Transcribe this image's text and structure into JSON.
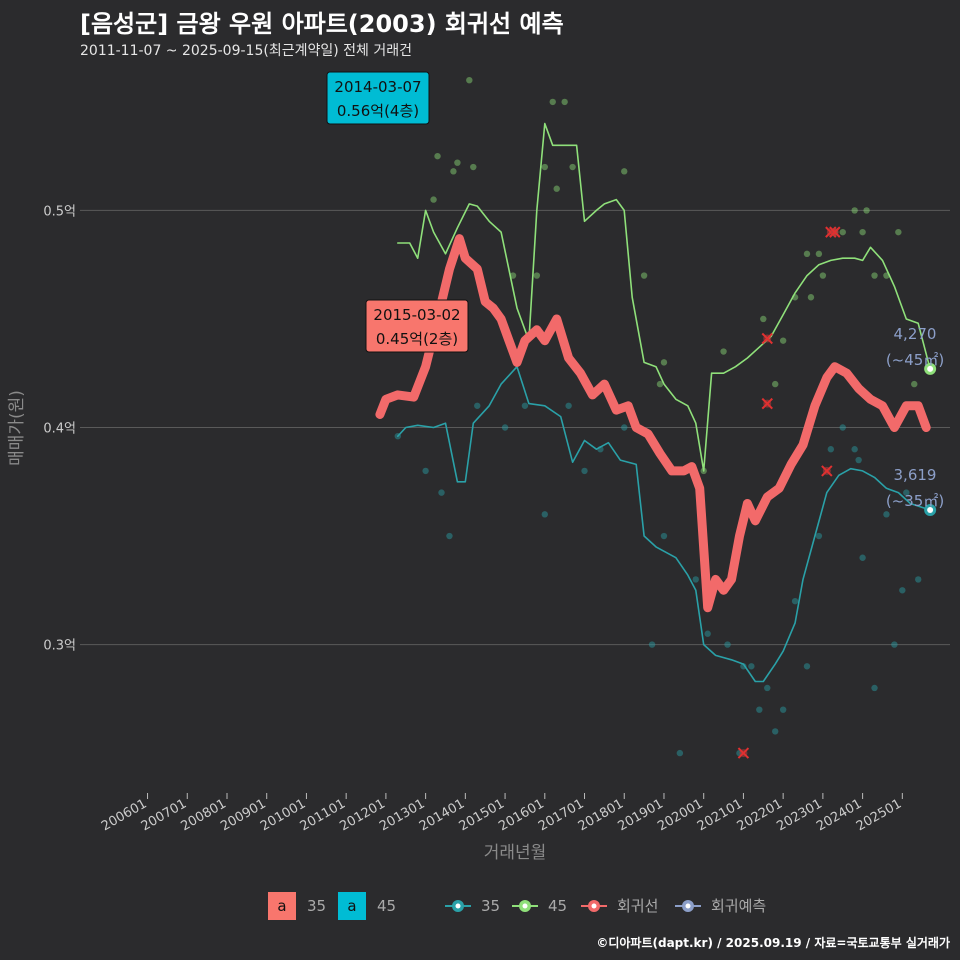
{
  "header": {
    "title": "[음성군] 금왕 우원 아파트(2003) 회귀선 예측",
    "subtitle": "2011-11-07 ~ 2025-09-15(최근계약일) 전체 거래건"
  },
  "footer": {
    "credit": "©디아파트(dapt.kr) / 2025.09.19 / 자료=국토교통부 실거래가"
  },
  "colors": {
    "background": "#2b2b2d",
    "grid": "#5a5a5a",
    "s35": "#2aa1a8",
    "s45": "#8fe07a",
    "regression": "#f26a6a",
    "forecast": "#8c9fc9"
  },
  "chart_data": {
    "type": "line",
    "title": "[음성군] 금왕 우원 아파트(2003) 회귀선 예측",
    "xlabel": "거래년월",
    "ylabel": "매매가(원)",
    "x_ticks": [
      "200601",
      "200701",
      "200801",
      "200901",
      "201001",
      "201101",
      "201201",
      "201301",
      "201401",
      "201501",
      "201601",
      "201701",
      "201801",
      "201901",
      "202001",
      "202101",
      "202201",
      "202301",
      "202401",
      "202501"
    ],
    "y_ticks": [
      {
        "value": 0.3,
        "label": "0.3억"
      },
      {
        "value": 0.4,
        "label": "0.4억"
      },
      {
        "value": 0.5,
        "label": "0.5억"
      }
    ],
    "ylim": [
      0.233,
      0.567
    ],
    "series": [
      {
        "name": "35",
        "points": [
          [
            2012.3,
            0.396
          ],
          [
            2012.5,
            0.4
          ],
          [
            2012.8,
            0.401
          ],
          [
            2013.2,
            0.4
          ],
          [
            2013.5,
            0.402
          ],
          [
            2013.8,
            0.375
          ],
          [
            2014.0,
            0.375
          ],
          [
            2014.2,
            0.402
          ],
          [
            2014.6,
            0.41
          ],
          [
            2014.9,
            0.42
          ],
          [
            2015.3,
            0.428
          ],
          [
            2015.6,
            0.411
          ],
          [
            2016.0,
            0.41
          ],
          [
            2016.4,
            0.405
          ],
          [
            2016.7,
            0.384
          ],
          [
            2017.0,
            0.394
          ],
          [
            2017.3,
            0.39
          ],
          [
            2017.6,
            0.393
          ],
          [
            2017.9,
            0.385
          ],
          [
            2018.3,
            0.383
          ],
          [
            2018.5,
            0.35
          ],
          [
            2018.8,
            0.345
          ],
          [
            2019.3,
            0.34
          ],
          [
            2019.6,
            0.332
          ],
          [
            2019.8,
            0.325
          ],
          [
            2020.0,
            0.3
          ],
          [
            2020.3,
            0.295
          ],
          [
            2020.7,
            0.293
          ],
          [
            2021.0,
            0.291
          ],
          [
            2021.3,
            0.283
          ],
          [
            2021.5,
            0.283
          ],
          [
            2021.8,
            0.291
          ],
          [
            2022.0,
            0.297
          ],
          [
            2022.3,
            0.31
          ],
          [
            2022.5,
            0.33
          ],
          [
            2022.8,
            0.35
          ],
          [
            2023.1,
            0.37
          ],
          [
            2023.4,
            0.378
          ],
          [
            2023.7,
            0.381
          ],
          [
            2024.0,
            0.38
          ],
          [
            2024.3,
            0.377
          ],
          [
            2024.6,
            0.372
          ],
          [
            2024.9,
            0.37
          ],
          [
            2025.2,
            0.365
          ],
          [
            2025.7,
            0.362
          ]
        ]
      },
      {
        "name": "45",
        "points": [
          [
            2012.3,
            0.485
          ],
          [
            2012.6,
            0.485
          ],
          [
            2012.8,
            0.478
          ],
          [
            2013.0,
            0.5
          ],
          [
            2013.2,
            0.49
          ],
          [
            2013.5,
            0.48
          ],
          [
            2013.8,
            0.492
          ],
          [
            2014.1,
            0.503
          ],
          [
            2014.3,
            0.502
          ],
          [
            2014.6,
            0.495
          ],
          [
            2014.9,
            0.49
          ],
          [
            2015.3,
            0.455
          ],
          [
            2015.6,
            0.44
          ],
          [
            2015.8,
            0.5
          ],
          [
            2016.0,
            0.54
          ],
          [
            2016.2,
            0.53
          ],
          [
            2016.5,
            0.53
          ],
          [
            2016.8,
            0.53
          ],
          [
            2017.0,
            0.495
          ],
          [
            2017.3,
            0.5
          ],
          [
            2017.5,
            0.503
          ],
          [
            2017.8,
            0.505
          ],
          [
            2018.0,
            0.5
          ],
          [
            2018.2,
            0.46
          ],
          [
            2018.5,
            0.43
          ],
          [
            2018.8,
            0.428
          ],
          [
            2019.0,
            0.42
          ],
          [
            2019.3,
            0.413
          ],
          [
            2019.6,
            0.41
          ],
          [
            2019.8,
            0.402
          ],
          [
            2020.0,
            0.38
          ],
          [
            2020.2,
            0.425
          ],
          [
            2020.5,
            0.425
          ],
          [
            2020.8,
            0.428
          ],
          [
            2021.1,
            0.432
          ],
          [
            2021.4,
            0.437
          ],
          [
            2021.7,
            0.442
          ],
          [
            2022.0,
            0.452
          ],
          [
            2022.3,
            0.462
          ],
          [
            2022.6,
            0.47
          ],
          [
            2022.9,
            0.475
          ],
          [
            2023.2,
            0.477
          ],
          [
            2023.5,
            0.478
          ],
          [
            2023.8,
            0.478
          ],
          [
            2024.0,
            0.477
          ],
          [
            2024.2,
            0.483
          ],
          [
            2024.5,
            0.477
          ],
          [
            2024.8,
            0.465
          ],
          [
            2025.1,
            0.45
          ],
          [
            2025.4,
            0.448
          ],
          [
            2025.7,
            0.427
          ]
        ]
      },
      {
        "name": "회귀선",
        "points": [
          [
            2011.85,
            0.406
          ],
          [
            2012.0,
            0.413
          ],
          [
            2012.3,
            0.415
          ],
          [
            2012.7,
            0.414
          ],
          [
            2013.0,
            0.428
          ],
          [
            2013.3,
            0.45
          ],
          [
            2013.6,
            0.473
          ],
          [
            2013.85,
            0.487
          ],
          [
            2014.0,
            0.478
          ],
          [
            2014.3,
            0.473
          ],
          [
            2014.5,
            0.458
          ],
          [
            2014.7,
            0.455
          ],
          [
            2014.9,
            0.45
          ],
          [
            2015.1,
            0.44
          ],
          [
            2015.3,
            0.43
          ],
          [
            2015.5,
            0.44
          ],
          [
            2015.8,
            0.445
          ],
          [
            2016.0,
            0.44
          ],
          [
            2016.3,
            0.45
          ],
          [
            2016.6,
            0.432
          ],
          [
            2016.9,
            0.425
          ],
          [
            2017.2,
            0.415
          ],
          [
            2017.5,
            0.42
          ],
          [
            2017.8,
            0.408
          ],
          [
            2018.1,
            0.41
          ],
          [
            2018.3,
            0.4
          ],
          [
            2018.6,
            0.397
          ],
          [
            2018.9,
            0.388
          ],
          [
            2019.2,
            0.38
          ],
          [
            2019.5,
            0.38
          ],
          [
            2019.7,
            0.382
          ],
          [
            2019.9,
            0.372
          ],
          [
            2020.1,
            0.317
          ],
          [
            2020.3,
            0.33
          ],
          [
            2020.5,
            0.325
          ],
          [
            2020.7,
            0.33
          ],
          [
            2020.9,
            0.35
          ],
          [
            2021.1,
            0.365
          ],
          [
            2021.3,
            0.357
          ],
          [
            2021.6,
            0.368
          ],
          [
            2021.9,
            0.372
          ],
          [
            2022.2,
            0.383
          ],
          [
            2022.5,
            0.392
          ],
          [
            2022.8,
            0.41
          ],
          [
            2023.1,
            0.423
          ],
          [
            2023.3,
            0.428
          ],
          [
            2023.6,
            0.425
          ],
          [
            2023.9,
            0.418
          ],
          [
            2024.2,
            0.413
          ],
          [
            2024.5,
            0.41
          ],
          [
            2024.8,
            0.4
          ],
          [
            2025.1,
            0.41
          ],
          [
            2025.4,
            0.41
          ],
          [
            2025.6,
            0.4
          ]
        ]
      }
    ],
    "scatter": [
      {
        "s": "45",
        "x": 2014.1,
        "y": 0.56
      },
      {
        "s": "45",
        "x": 2016.2,
        "y": 0.55
      },
      {
        "s": "45",
        "x": 2016.5,
        "y": 0.55
      },
      {
        "s": "45",
        "x": 2013.3,
        "y": 0.525
      },
      {
        "s": "45",
        "x": 2013.8,
        "y": 0.522
      },
      {
        "s": "45",
        "x": 2014.2,
        "y": 0.52
      },
      {
        "s": "45",
        "x": 2013.7,
        "y": 0.518
      },
      {
        "s": "45",
        "x": 2016.0,
        "y": 0.52
      },
      {
        "s": "45",
        "x": 2016.7,
        "y": 0.52
      },
      {
        "s": "45",
        "x": 2018.0,
        "y": 0.518
      },
      {
        "s": "45",
        "x": 2013.2,
        "y": 0.505
      },
      {
        "s": "45",
        "x": 2016.3,
        "y": 0.51
      },
      {
        "s": "45",
        "x": 2015.2,
        "y": 0.47
      },
      {
        "s": "45",
        "x": 2015.8,
        "y": 0.47
      },
      {
        "s": "45",
        "x": 2018.5,
        "y": 0.47
      },
      {
        "s": "45",
        "x": 2018.9,
        "y": 0.42
      },
      {
        "s": "45",
        "x": 2019.0,
        "y": 0.43
      },
      {
        "s": "45",
        "x": 2020.0,
        "y": 0.38
      },
      {
        "s": "45",
        "x": 2020.5,
        "y": 0.435
      },
      {
        "s": "45",
        "x": 2021.5,
        "y": 0.45
      },
      {
        "s": "45",
        "x": 2021.8,
        "y": 0.42
      },
      {
        "s": "45",
        "x": 2022.0,
        "y": 0.44
      },
      {
        "s": "45",
        "x": 2022.3,
        "y": 0.46
      },
      {
        "s": "45",
        "x": 2022.6,
        "y": 0.48
      },
      {
        "s": "45",
        "x": 2022.9,
        "y": 0.48
      },
      {
        "s": "45",
        "x": 2023.3,
        "y": 0.49
      },
      {
        "s": "45",
        "x": 2023.5,
        "y": 0.49
      },
      {
        "s": "45",
        "x": 2023.8,
        "y": 0.5
      },
      {
        "s": "45",
        "x": 2024.0,
        "y": 0.49
      },
      {
        "s": "45",
        "x": 2024.1,
        "y": 0.5
      },
      {
        "s": "45",
        "x": 2024.3,
        "y": 0.47
      },
      {
        "s": "45",
        "x": 2024.6,
        "y": 0.47
      },
      {
        "s": "45",
        "x": 2024.9,
        "y": 0.49
      },
      {
        "s": "45",
        "x": 2025.3,
        "y": 0.42
      },
      {
        "s": "45",
        "x": 2022.7,
        "y": 0.46
      },
      {
        "s": "45",
        "x": 2023.0,
        "y": 0.47
      },
      {
        "s": "35",
        "x": 2012.3,
        "y": 0.396
      },
      {
        "s": "35",
        "x": 2013.0,
        "y": 0.38
      },
      {
        "s": "35",
        "x": 2013.4,
        "y": 0.37
      },
      {
        "s": "35",
        "x": 2013.6,
        "y": 0.35
      },
      {
        "s": "35",
        "x": 2014.3,
        "y": 0.41
      },
      {
        "s": "35",
        "x": 2015.0,
        "y": 0.4
      },
      {
        "s": "35",
        "x": 2015.5,
        "y": 0.41
      },
      {
        "s": "35",
        "x": 2016.0,
        "y": 0.36
      },
      {
        "s": "35",
        "x": 2016.6,
        "y": 0.41
      },
      {
        "s": "35",
        "x": 2017.0,
        "y": 0.38
      },
      {
        "s": "35",
        "x": 2017.4,
        "y": 0.39
      },
      {
        "s": "35",
        "x": 2018.0,
        "y": 0.4
      },
      {
        "s": "35",
        "x": 2018.7,
        "y": 0.3
      },
      {
        "s": "35",
        "x": 2019.0,
        "y": 0.35
      },
      {
        "s": "35",
        "x": 2019.4,
        "y": 0.25
      },
      {
        "s": "35",
        "x": 2019.8,
        "y": 0.33
      },
      {
        "s": "35",
        "x": 2020.1,
        "y": 0.305
      },
      {
        "s": "35",
        "x": 2020.6,
        "y": 0.3
      },
      {
        "s": "35",
        "x": 2021.0,
        "y": 0.29
      },
      {
        "s": "35",
        "x": 2021.2,
        "y": 0.29
      },
      {
        "s": "35",
        "x": 2021.4,
        "y": 0.27
      },
      {
        "s": "35",
        "x": 2021.6,
        "y": 0.28
      },
      {
        "s": "35",
        "x": 2021.8,
        "y": 0.26
      },
      {
        "s": "35",
        "x": 2022.0,
        "y": 0.27
      },
      {
        "s": "35",
        "x": 2022.3,
        "y": 0.32
      },
      {
        "s": "35",
        "x": 2022.6,
        "y": 0.29
      },
      {
        "s": "35",
        "x": 2022.9,
        "y": 0.35
      },
      {
        "s": "35",
        "x": 2023.2,
        "y": 0.39
      },
      {
        "s": "35",
        "x": 2023.5,
        "y": 0.4
      },
      {
        "s": "35",
        "x": 2023.8,
        "y": 0.39
      },
      {
        "s": "35",
        "x": 2024.0,
        "y": 0.34
      },
      {
        "s": "35",
        "x": 2024.3,
        "y": 0.28
      },
      {
        "s": "35",
        "x": 2024.6,
        "y": 0.36
      },
      {
        "s": "35",
        "x": 2024.8,
        "y": 0.3
      },
      {
        "s": "35",
        "x": 2025.0,
        "y": 0.325
      },
      {
        "s": "35",
        "x": 2025.4,
        "y": 0.33
      },
      {
        "s": "35",
        "x": 2025.1,
        "y": 0.37
      },
      {
        "s": "35",
        "x": 2023.9,
        "y": 0.385
      },
      {
        "s": "35",
        "x": 2020.9,
        "y": 0.25
      }
    ],
    "outliers": [
      {
        "x": 2021.0,
        "y": 0.25
      },
      {
        "x": 2021.6,
        "y": 0.441
      },
      {
        "x": 2021.6,
        "y": 0.411
      },
      {
        "x": 2023.1,
        "y": 0.38
      },
      {
        "x": 2023.2,
        "y": 0.49
      },
      {
        "x": 2023.3,
        "y": 0.49
      }
    ],
    "annotations": [
      {
        "line1": "2014-03-07",
        "line2": "0.56억(4층)",
        "color": "#00bcd4"
      },
      {
        "line1": "2015-03-02",
        "line2": "0.45억(2층)",
        "color": "#f8766d"
      }
    ],
    "end_labels": [
      {
        "value": "4,270",
        "sub": "(~45㎡)",
        "x": 2025.7,
        "y": 0.427
      },
      {
        "value": "3,619",
        "sub": "(~35㎡)",
        "x": 2025.7,
        "y": 0.362
      }
    ],
    "legend": {
      "boxes": [
        {
          "letter": "a",
          "label": "35",
          "color": "#f8766d"
        },
        {
          "letter": "a",
          "label": "45",
          "color": "#00bcd4"
        }
      ],
      "lines": [
        {
          "label": "35",
          "color": "#2aa1a8"
        },
        {
          "label": "45",
          "color": "#8fe07a"
        },
        {
          "label": "회귀선",
          "color": "#f26a6a"
        },
        {
          "label": "회귀예측",
          "color": "#8c9fc9"
        }
      ]
    }
  }
}
